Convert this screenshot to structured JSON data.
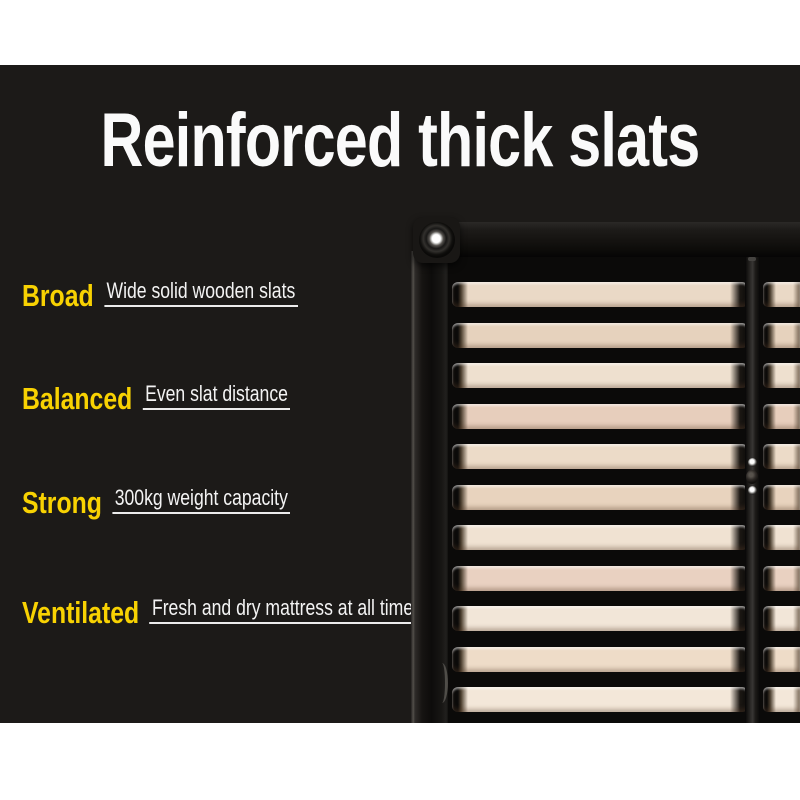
{
  "title": "Reinforced thick slats",
  "features": [
    {
      "label": "Broad",
      "description": "Wide solid wooden slats"
    },
    {
      "label": "Balanced",
      "description": "Even slat distance"
    },
    {
      "label": "Strong",
      "description": "300kg weight capacity"
    },
    {
      "label": "Ventilated",
      "description": "Fresh and dry mattress at all times"
    }
  ],
  "colors": {
    "accent_yellow": "#f8d202",
    "text_white": "#fafafa",
    "underline": "#ececec",
    "banner_background": "#1c1a18",
    "photo_black": "#0b0a09",
    "slat_wood": "#ead9c6"
  },
  "photo": {
    "subject": "black metal bed frame corner with wooden slats and centre support rail",
    "slat_count": 11,
    "slat_row_start": 217,
    "slat_row_step": 40.5,
    "slat_shades": [
      "#ead9c6",
      "#e6d2bd",
      "#eee0cf",
      "#e7cebc",
      "#ecdbc8",
      "#e8d3be",
      "#f0e2d2",
      "#e9d1c1",
      "#f2e6d8",
      "#eedcc8",
      "#f3e7d9"
    ]
  }
}
